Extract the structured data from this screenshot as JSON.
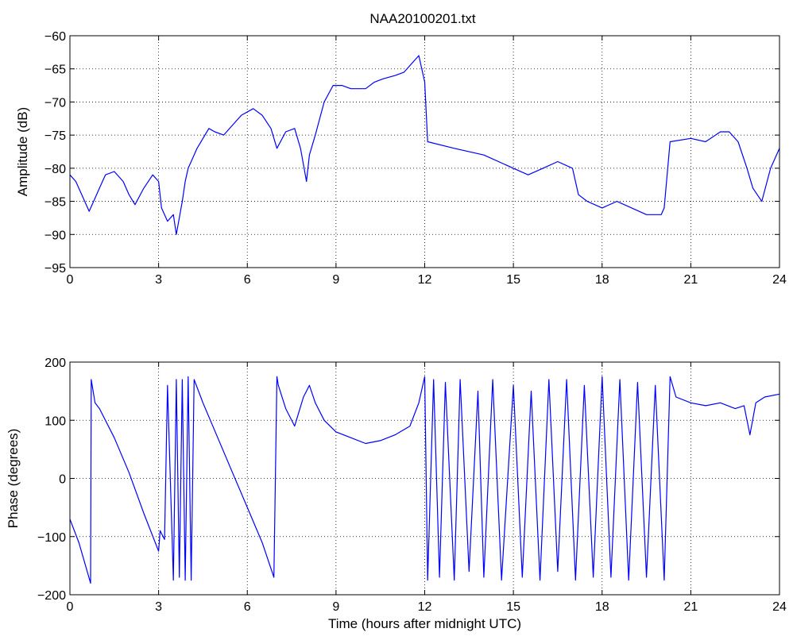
{
  "figure_title": "NAA20100201.txt",
  "colors": {
    "line": "#0000ff",
    "axis": "#000000",
    "grid": "#000000",
    "background": "#ffffff"
  },
  "chart_data": [
    {
      "type": "line",
      "title": "NAA20100201.txt",
      "xlabel": "",
      "ylabel": "Amplitude (dB)",
      "xlim": [
        0,
        24
      ],
      "ylim": [
        -95,
        -60
      ],
      "xticks": [
        0,
        3,
        6,
        9,
        12,
        15,
        18,
        21,
        24
      ],
      "yticks": [
        -95,
        -90,
        -85,
        -80,
        -75,
        -70,
        -65,
        -60
      ],
      "grid": true,
      "series": [
        {
          "color": "#0000ff",
          "x": [
            0,
            0.2,
            0.4,
            0.65,
            0.8,
            1.0,
            1.2,
            1.5,
            1.8,
            2.0,
            2.2,
            2.5,
            2.8,
            3.0,
            3.1,
            3.3,
            3.5,
            3.6,
            3.8,
            3.9,
            4.0,
            4.1,
            4.3,
            4.7,
            4.9,
            5.2,
            5.5,
            5.8,
            6.2,
            6.5,
            6.8,
            7.0,
            7.3,
            7.6,
            7.8,
            8.0,
            8.1,
            8.3,
            8.6,
            8.9,
            9.2,
            9.5,
            9.8,
            10.0,
            10.3,
            10.6,
            11.0,
            11.3,
            11.6,
            11.8,
            12.0,
            12.1,
            13.0,
            14.0,
            15.0,
            15.5,
            16.0,
            16.5,
            17.0,
            17.2,
            17.5,
            18.0,
            18.5,
            19.0,
            19.5,
            20.0,
            20.1,
            20.3,
            21.0,
            21.5,
            22.0,
            22.3,
            22.6,
            22.9,
            23.1,
            23.4,
            23.7,
            24.0
          ],
          "y": [
            -81,
            -82,
            -84,
            -86.5,
            -85,
            -83,
            -81,
            -80.5,
            -82,
            -84,
            -85.5,
            -83,
            -81,
            -82,
            -86,
            -88,
            -87,
            -90,
            -85,
            -82,
            -80,
            -79,
            -77,
            -74,
            -74.5,
            -75,
            -73.5,
            -72,
            -71,
            -72,
            -74,
            -77,
            -74.5,
            -74,
            -77,
            -82,
            -78,
            -75,
            -70,
            -67.5,
            -67.5,
            -68,
            -68,
            -68,
            -67,
            -66.5,
            -66,
            -65.5,
            -64,
            -63,
            -67,
            -76,
            -77,
            -78,
            -80,
            -81,
            -80,
            -79,
            -80,
            -84,
            -85,
            -86,
            -85,
            -86,
            -87,
            -87,
            -86,
            -76,
            -75.5,
            -76,
            -74.5,
            -74.5,
            -76,
            -80,
            -83,
            -85,
            -80,
            -77
          ]
        }
      ]
    },
    {
      "type": "line",
      "title": "",
      "xlabel": "Time (hours after midnight UTC)",
      "ylabel": "Phase (degrees)",
      "xlim": [
        0,
        24
      ],
      "ylim": [
        -200,
        200
      ],
      "xticks": [
        0,
        3,
        6,
        9,
        12,
        15,
        18,
        21,
        24
      ],
      "yticks": [
        -200,
        -100,
        0,
        100,
        200
      ],
      "grid": true,
      "series": [
        {
          "color": "#0000ff",
          "x": [
            0,
            0.3,
            0.5,
            0.7,
            0.72,
            0.85,
            1.0,
            1.5,
            2.0,
            2.5,
            3.0,
            3.05,
            3.2,
            3.3,
            3.5,
            3.6,
            3.7,
            3.8,
            3.9,
            4.0,
            4.1,
            4.2,
            4.5,
            5.0,
            5.5,
            6.0,
            6.5,
            6.9,
            7.0,
            7.05,
            7.3,
            7.6,
            7.9,
            8.1,
            8.3,
            8.6,
            9.0,
            9.5,
            10.0,
            10.5,
            11.0,
            11.5,
            11.8,
            12.0,
            12.1,
            12.3,
            12.5,
            12.7,
            13.0,
            13.2,
            13.5,
            13.8,
            14.0,
            14.3,
            14.6,
            15.0,
            15.3,
            15.6,
            15.9,
            16.2,
            16.5,
            16.8,
            17.1,
            17.4,
            17.7,
            18.0,
            18.3,
            18.6,
            18.9,
            19.2,
            19.5,
            19.8,
            20.1,
            20.3,
            20.5,
            21.0,
            21.5,
            22.0,
            22.5,
            22.8,
            23.0,
            23.2,
            23.5,
            24.0
          ],
          "y": [
            -70,
            -110,
            -145,
            -180,
            170,
            130,
            120,
            70,
            10,
            -60,
            -125,
            -90,
            -105,
            160,
            -175,
            170,
            -170,
            170,
            -175,
            175,
            -175,
            170,
            130,
            70,
            10,
            -50,
            -110,
            -170,
            175,
            160,
            120,
            90,
            140,
            160,
            130,
            100,
            80,
            70,
            60,
            65,
            75,
            90,
            130,
            175,
            -175,
            170,
            -170,
            165,
            -175,
            170,
            -160,
            150,
            -170,
            170,
            -175,
            160,
            -170,
            150,
            -175,
            170,
            -160,
            170,
            -175,
            160,
            -170,
            175,
            -170,
            170,
            -175,
            165,
            -170,
            160,
            -175,
            175,
            140,
            130,
            125,
            130,
            120,
            125,
            75,
            130,
            140,
            145
          ]
        }
      ]
    }
  ]
}
